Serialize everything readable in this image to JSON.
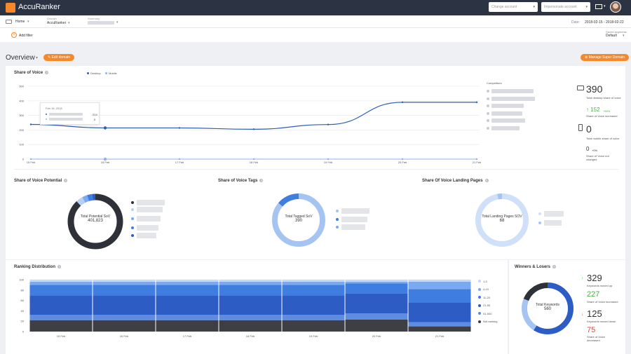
{
  "app": {
    "title": "AccuRanker"
  },
  "topbar": {
    "change_account_placeholder": "Change account",
    "impersonate_placeholder": "Impersonate account"
  },
  "crumbs": {
    "home": "Home",
    "domain_label": "Domain",
    "domain_value": "AccuRanker",
    "summary_label": "Summary",
    "date_label": "Date:",
    "date_value": "2018-02-15 - 2018-02-22",
    "saved_segments_label": "Saved segments",
    "saved_segments_value": "Default"
  },
  "filters": {
    "add_filter": "Add filter"
  },
  "overview": {
    "title": "Overview",
    "edit_domain": "Edit domain",
    "manage_super_domain": "Manage Super Domain"
  },
  "sov": {
    "title": "Share of Voice",
    "legend": [
      "Desktop",
      "Mobile"
    ],
    "competitors_label": "Competitors",
    "tooltip": {
      "date": "Feb 16, 2018",
      "desktop_value": "214",
      "mobile_value": "0"
    },
    "desktop": {
      "value": "390",
      "label": "Total desktop share of voice",
      "change": "152",
      "change_pct": "+59%",
      "change_label": "Share of Voice increased"
    },
    "mobile": {
      "value": "0",
      "label": "Total mobile share of voice",
      "change": "0",
      "change_pct": "+0%",
      "change_label": "Share of Voice not changed"
    }
  },
  "chart_data": [
    {
      "type": "line",
      "title": "Share of Voice",
      "x": [
        "15 Feb",
        "16 Feb",
        "17 Feb",
        "18 Feb",
        "19 Feb",
        "20 Feb",
        "21 Feb"
      ],
      "series": [
        {
          "name": "Desktop",
          "values": [
            238,
            214,
            214,
            205,
            237,
            390,
            390
          ]
        },
        {
          "name": "Mobile",
          "values": [
            0,
            0,
            0,
            0,
            0,
            0,
            0
          ]
        }
      ],
      "y_ticks": [
        0,
        100,
        200,
        300,
        400,
        500
      ],
      "ylim": [
        0,
        500
      ]
    },
    {
      "type": "bar",
      "title": "Ranking Distribution",
      "categories": [
        "15 Feb",
        "16 Feb",
        "17 Feb",
        "18 Feb",
        "19 Feb",
        "20 Feb",
        "21 Feb"
      ],
      "series": [
        {
          "name": "Not ranking",
          "values": [
            22,
            22,
            22,
            22,
            22,
            23,
            10
          ]
        },
        {
          "name": "51-500",
          "values": [
            10,
            10,
            10,
            10,
            10,
            12,
            8
          ]
        },
        {
          "name": "21-50",
          "values": [
            38,
            38,
            38,
            38,
            38,
            38,
            38
          ]
        },
        {
          "name": "11-20",
          "values": [
            20,
            20,
            20,
            20,
            20,
            20,
            26
          ]
        },
        {
          "name": "4-10",
          "values": [
            6,
            6,
            6,
            6,
            6,
            3,
            14
          ]
        },
        {
          "name": "1-3",
          "values": [
            4,
            4,
            4,
            4,
            4,
            4,
            4
          ]
        }
      ],
      "y_ticks": [
        0,
        20,
        40,
        60,
        80,
        100
      ],
      "ylim": [
        0,
        100
      ]
    },
    {
      "type": "pie",
      "title": "Share of Voice Potential",
      "center_label": "Total Potential SoV",
      "center_value": "401,823",
      "values": [
        88,
        4,
        3,
        3,
        2
      ]
    },
    {
      "type": "pie",
      "title": "Share of Voice Tags",
      "center_label": "Total Tagged SoV",
      "center_value": "390",
      "values": [
        86,
        14
      ]
    },
    {
      "type": "pie",
      "title": "Share Of Voice Landing Pages",
      "center_label": "Total Landing Pages SOV",
      "center_value": "68",
      "values": [
        97,
        3
      ]
    },
    {
      "type": "pie",
      "title": "Winners & Losers",
      "center_label": "Total Keywords",
      "center_value": "560",
      "values": [
        59,
        22,
        19
      ]
    }
  ],
  "cards": {
    "potential_title": "Share of Voice Potential",
    "tags_title": "Share of Voice Tags",
    "landing_title": "Share Of Voice Landing Pages",
    "ranking_title": "Ranking Distribution",
    "winners_title": "Winners & Losers"
  },
  "ranking_legend": [
    "1-3",
    "4-10",
    "11-20",
    "21-50",
    "51-500",
    "Not ranking"
  ],
  "winners": {
    "moved_up": "329",
    "moved_up_label": "Keywords moved up",
    "sov_inc": "227",
    "sov_inc_label": "Share of Voice increased",
    "moved_down": "125",
    "moved_down_label": "Keywords moved down",
    "sov_dec": "75",
    "sov_dec_label": "Share of Voice decreased"
  },
  "colors": {
    "accent": "#f5882a",
    "topbar": "#2c3443",
    "line": "#2f5fb3",
    "dark": "#2e3137",
    "blue1": "#2d5cc4",
    "blue2": "#3f7de0",
    "blue3": "#7aa9f0",
    "blue4": "#b8cff5"
  }
}
